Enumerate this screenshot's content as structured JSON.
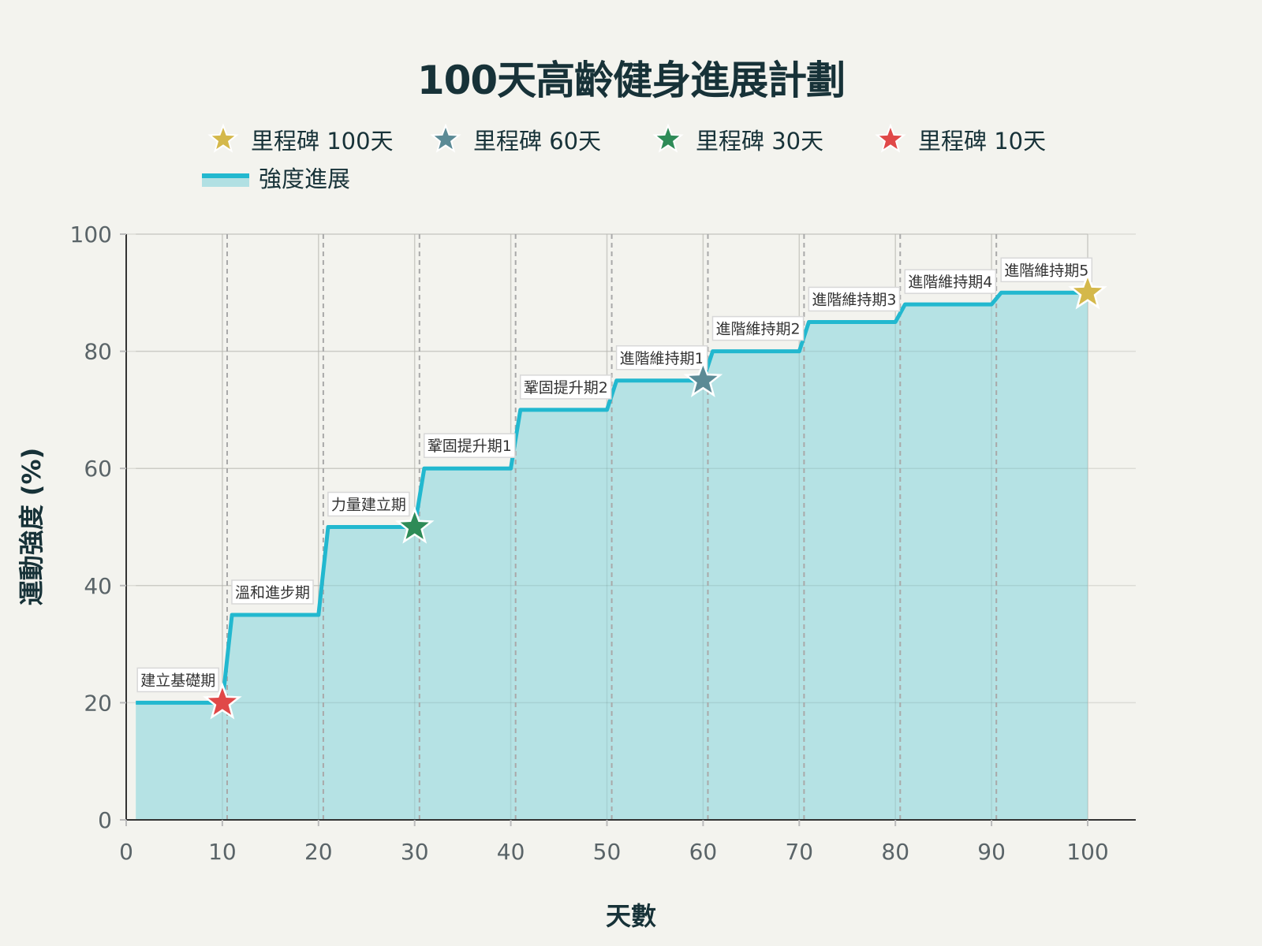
{
  "chart_data": {
    "type": "area",
    "title": "100天高齡健身進展計劃",
    "xlabel": "天數",
    "ylabel": "運動強度 (%)",
    "xlim": [
      0,
      105
    ],
    "ylim": [
      0,
      100
    ],
    "xticks": [
      0,
      10,
      20,
      30,
      40,
      50,
      60,
      70,
      80,
      90,
      100
    ],
    "yticks": [
      0,
      20,
      40,
      60,
      80,
      100
    ],
    "grid": true,
    "legend_position": "top",
    "series": [
      {
        "name": "強度進展",
        "color": "#22b8cf",
        "fill": "#b1e0e3",
        "phases": [
          {
            "label": "建立基礎期",
            "start": 1,
            "end": 10,
            "value": 20
          },
          {
            "label": "溫和進步期",
            "start": 11,
            "end": 20,
            "value": 35
          },
          {
            "label": "力量建立期",
            "start": 21,
            "end": 30,
            "value": 50
          },
          {
            "label": "鞏固提升期1",
            "start": 31,
            "end": 40,
            "value": 60
          },
          {
            "label": "鞏固提升期2",
            "start": 41,
            "end": 50,
            "value": 70
          },
          {
            "label": "進階維持期1",
            "start": 51,
            "end": 60,
            "value": 75
          },
          {
            "label": "進階維持期2",
            "start": 61,
            "end": 70,
            "value": 80
          },
          {
            "label": "進階維持期3",
            "start": 71,
            "end": 80,
            "value": 85
          },
          {
            "label": "進階維持期4",
            "start": 81,
            "end": 90,
            "value": 88
          },
          {
            "label": "進階維持期5",
            "start": 91,
            "end": 100,
            "value": 90
          }
        ]
      }
    ],
    "milestones": [
      {
        "name": "里程碑 100天",
        "x": 100,
        "y": 90,
        "color": "#d4b84a"
      },
      {
        "name": "里程碑 60天",
        "x": 60,
        "y": 75,
        "color": "#5b8a95"
      },
      {
        "name": "里程碑 30天",
        "x": 30,
        "y": 50,
        "color": "#2e8b57"
      },
      {
        "name": "里程碑 10天",
        "x": 10,
        "y": 20,
        "color": "#e04848"
      }
    ]
  }
}
